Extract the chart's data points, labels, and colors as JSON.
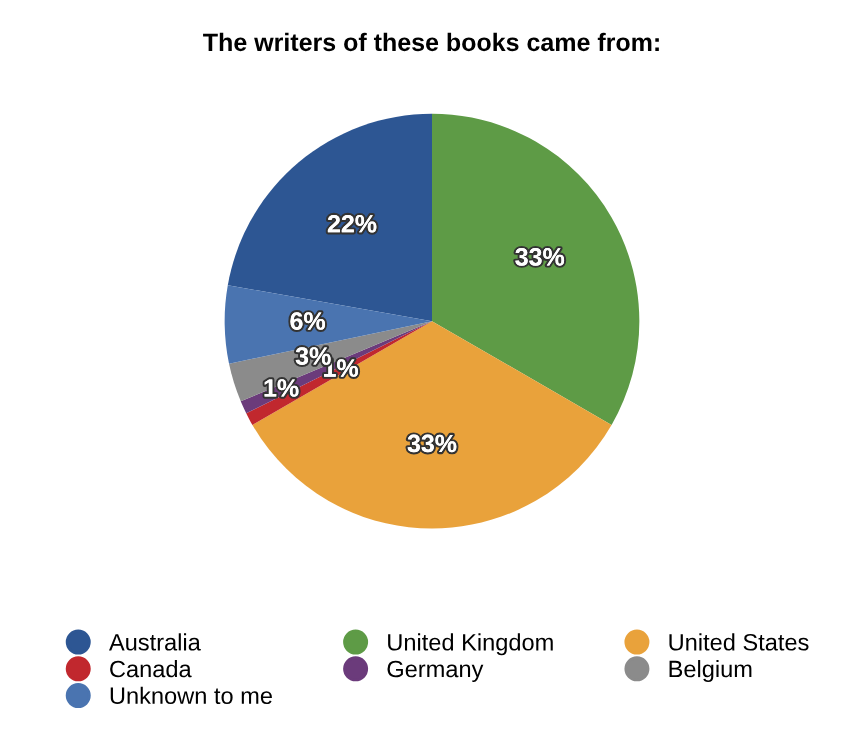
{
  "chart_data": {
    "type": "pie",
    "title": "The writers of these books came from:",
    "categories": [
      "Australia",
      "United Kingdom",
      "United States",
      "Canada",
      "Germany",
      "Belgium",
      "Unknown to me"
    ],
    "values": [
      22,
      33,
      33,
      1,
      1,
      3,
      6
    ],
    "colors": [
      "#2d5693",
      "#5e9b46",
      "#e9a23b",
      "#c1282e",
      "#6b3b7b",
      "#8b8b8b",
      "#4a74b0"
    ],
    "value_labels": [
      "22%",
      "33%",
      "33%",
      "1%",
      "1%",
      "3%",
      "6%"
    ],
    "legend": "bottom"
  }
}
